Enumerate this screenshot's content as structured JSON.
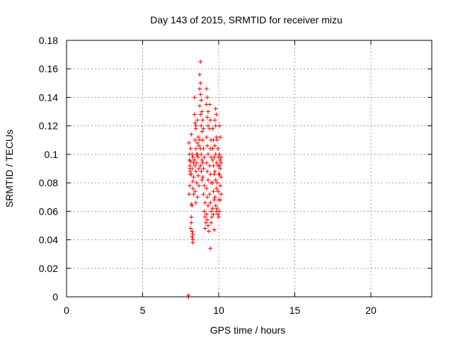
{
  "chart_data": {
    "type": "scatter",
    "title": "Day 143 of 2015, SRMTID for receiver mizu",
    "xlabel": "GPS time / hours",
    "ylabel": "SRMTID / TECUs",
    "xlim": [
      0,
      24
    ],
    "ylim": [
      0,
      0.18
    ],
    "xticks": [
      0,
      5,
      10,
      15,
      20
    ],
    "yticks": [
      0,
      0.02,
      0.04,
      0.06,
      0.08,
      0.1,
      0.12,
      0.14,
      0.16,
      0.18
    ],
    "xtick_labels": [
      "0",
      "5",
      "10",
      "15",
      "20"
    ],
    "ytick_labels": [
      "0",
      "0.02",
      "0.04",
      "0.06",
      "0.08",
      "0.1",
      "0.12",
      "0.14",
      "0.16",
      "0.18"
    ],
    "grid": true,
    "marker": "+",
    "color": "#ff0000",
    "points": [
      [
        8.0,
        0.0
      ],
      [
        8.0,
        0.001
      ],
      [
        8.02,
        0.0
      ],
      [
        8.05,
        0.108
      ],
      [
        8.08,
        0.1
      ],
      [
        8.1,
        0.092
      ],
      [
        8.12,
        0.088
      ],
      [
        8.15,
        0.095
      ],
      [
        8.05,
        0.072
      ],
      [
        8.1,
        0.078
      ],
      [
        8.15,
        0.104
      ],
      [
        8.12,
        0.086
      ],
      [
        8.1,
        0.09
      ],
      [
        8.08,
        0.096
      ],
      [
        8.15,
        0.048
      ],
      [
        8.2,
        0.052
      ],
      [
        8.2,
        0.056
      ],
      [
        8.25,
        0.046
      ],
      [
        8.25,
        0.042
      ],
      [
        8.3,
        0.04
      ],
      [
        8.3,
        0.038
      ],
      [
        8.2,
        0.065
      ],
      [
        8.25,
        0.064
      ],
      [
        8.3,
        0.044
      ],
      [
        8.2,
        0.114
      ],
      [
        8.25,
        0.1
      ],
      [
        8.3,
        0.098
      ],
      [
        8.35,
        0.084
      ],
      [
        8.3,
        0.076
      ],
      [
        8.35,
        0.072
      ],
      [
        8.25,
        0.09
      ],
      [
        8.2,
        0.086
      ],
      [
        8.35,
        0.094
      ],
      [
        8.3,
        0.081
      ],
      [
        8.4,
        0.128
      ],
      [
        8.45,
        0.122
      ],
      [
        8.5,
        0.12
      ],
      [
        8.45,
        0.11
      ],
      [
        8.5,
        0.104
      ],
      [
        8.4,
        0.096
      ],
      [
        8.45,
        0.092
      ],
      [
        8.5,
        0.088
      ],
      [
        8.55,
        0.1
      ],
      [
        8.55,
        0.08
      ],
      [
        8.6,
        0.07
      ],
      [
        8.5,
        0.066
      ],
      [
        8.45,
        0.074
      ],
      [
        8.55,
        0.094
      ],
      [
        8.4,
        0.14
      ],
      [
        8.5,
        0.118
      ],
      [
        8.6,
        0.124
      ],
      [
        8.6,
        0.108
      ],
      [
        8.65,
        0.098
      ],
      [
        8.7,
        0.09
      ],
      [
        8.65,
        0.085
      ],
      [
        8.7,
        0.078
      ],
      [
        8.6,
        0.1
      ],
      [
        8.65,
        0.112
      ],
      [
        8.7,
        0.106
      ],
      [
        8.75,
        0.146
      ],
      [
        8.8,
        0.15
      ],
      [
        8.8,
        0.142
      ],
      [
        8.85,
        0.138
      ],
      [
        8.75,
        0.134
      ],
      [
        8.8,
        0.128
      ],
      [
        8.85,
        0.12
      ],
      [
        8.9,
        0.116
      ],
      [
        8.75,
        0.11
      ],
      [
        8.8,
        0.104
      ],
      [
        8.85,
        0.1
      ],
      [
        8.9,
        0.096
      ],
      [
        8.8,
        0.092
      ],
      [
        8.85,
        0.088
      ],
      [
        8.9,
        0.082
      ],
      [
        8.8,
        0.165
      ],
      [
        8.75,
        0.156
      ],
      [
        8.9,
        0.13
      ],
      [
        8.95,
        0.124
      ],
      [
        9.0,
        0.118
      ],
      [
        8.95,
        0.11
      ],
      [
        9.0,
        0.104
      ],
      [
        9.05,
        0.098
      ],
      [
        9.0,
        0.09
      ],
      [
        8.95,
        0.084
      ],
      [
        9.05,
        0.078
      ],
      [
        9.0,
        0.072
      ],
      [
        9.1,
        0.066
      ],
      [
        9.05,
        0.06
      ],
      [
        9.1,
        0.056
      ],
      [
        9.15,
        0.052
      ],
      [
        9.1,
        0.048
      ],
      [
        8.95,
        0.094
      ],
      [
        9.2,
        0.146
      ],
      [
        9.25,
        0.14
      ],
      [
        9.2,
        0.135
      ],
      [
        9.3,
        0.13
      ],
      [
        9.25,
        0.126
      ],
      [
        9.3,
        0.12
      ],
      [
        9.2,
        0.112
      ],
      [
        9.25,
        0.106
      ],
      [
        9.3,
        0.1
      ],
      [
        9.2,
        0.094
      ],
      [
        9.25,
        0.088
      ],
      [
        9.3,
        0.082
      ],
      [
        9.2,
        0.076
      ],
      [
        9.25,
        0.07
      ],
      [
        9.3,
        0.064
      ],
      [
        9.2,
        0.058
      ],
      [
        9.25,
        0.054
      ],
      [
        9.3,
        0.05
      ],
      [
        9.35,
        0.046
      ],
      [
        9.4,
        0.135
      ],
      [
        9.45,
        0.124
      ],
      [
        9.4,
        0.118
      ],
      [
        9.5,
        0.11
      ],
      [
        9.45,
        0.104
      ],
      [
        9.5,
        0.098
      ],
      [
        9.4,
        0.092
      ],
      [
        9.45,
        0.086
      ],
      [
        9.5,
        0.08
      ],
      [
        9.4,
        0.072
      ],
      [
        9.45,
        0.066
      ],
      [
        9.5,
        0.06
      ],
      [
        9.55,
        0.056
      ],
      [
        9.5,
        0.052
      ],
      [
        9.45,
        0.034
      ],
      [
        9.6,
        0.118
      ],
      [
        9.65,
        0.11
      ],
      [
        9.6,
        0.104
      ],
      [
        9.7,
        0.098
      ],
      [
        9.65,
        0.092
      ],
      [
        9.7,
        0.086
      ],
      [
        9.6,
        0.08
      ],
      [
        9.65,
        0.074
      ],
      [
        9.7,
        0.068
      ],
      [
        9.6,
        0.062
      ],
      [
        9.65,
        0.058
      ],
      [
        9.7,
        0.047
      ],
      [
        9.6,
        0.096
      ],
      [
        9.75,
        0.124
      ],
      [
        9.8,
        0.132
      ],
      [
        9.85,
        0.128
      ],
      [
        9.8,
        0.12
      ],
      [
        9.85,
        0.112
      ],
      [
        9.75,
        0.106
      ],
      [
        9.8,
        0.1
      ],
      [
        9.85,
        0.094
      ],
      [
        9.75,
        0.088
      ],
      [
        9.8,
        0.082
      ],
      [
        9.85,
        0.076
      ],
      [
        9.75,
        0.07
      ],
      [
        9.8,
        0.064
      ],
      [
        9.85,
        0.06
      ],
      [
        9.9,
        0.11
      ],
      [
        9.95,
        0.104
      ],
      [
        10.0,
        0.098
      ],
      [
        9.95,
        0.092
      ],
      [
        10.0,
        0.086
      ],
      [
        9.9,
        0.08
      ],
      [
        9.95,
        0.074
      ],
      [
        10.0,
        0.068
      ],
      [
        9.9,
        0.062
      ],
      [
        9.95,
        0.058
      ],
      [
        10.0,
        0.056
      ],
      [
        10.05,
        0.06
      ],
      [
        10.05,
        0.12
      ],
      [
        10.1,
        0.112
      ],
      [
        10.05,
        0.1
      ],
      [
        10.1,
        0.096
      ],
      [
        10.15,
        0.094
      ],
      [
        10.1,
        0.09
      ],
      [
        10.05,
        0.086
      ],
      [
        10.15,
        0.084
      ],
      [
        10.1,
        0.078
      ],
      [
        10.15,
        0.072
      ],
      [
        10.1,
        0.068
      ],
      [
        10.05,
        0.092
      ],
      [
        10.15,
        0.098
      ]
    ]
  }
}
